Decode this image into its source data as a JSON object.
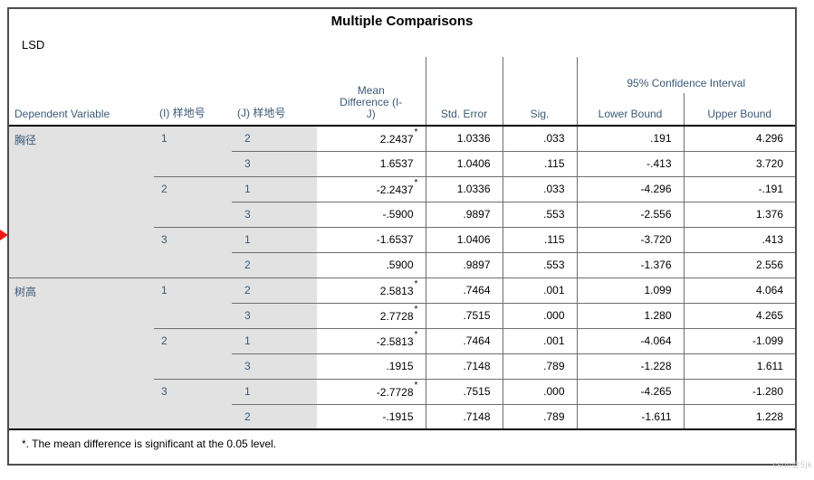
{
  "table": {
    "title": "Multiple Comparisons",
    "subtitle": "LSD",
    "headers": {
      "dependent_variable": "Dependent Variable",
      "i_group": "(I) 样地号",
      "j_group": "(J) 样地号",
      "mean_difference": "Mean\nDifference (I-\nJ)",
      "std_error": "Std. Error",
      "sig": "Sig.",
      "ci_span": "95% Confidence Interval",
      "lower_bound": "Lower Bound",
      "upper_bound": "Upper Bound"
    },
    "sections": [
      {
        "dependent_variable": "胸径",
        "groups": [
          {
            "i": "1",
            "rows": [
              {
                "j": "2",
                "mean_diff": "2.2437",
                "sig_flag": true,
                "std_error": "1.0336",
                "sig": ".033",
                "lower": ".191",
                "upper": "4.296"
              },
              {
                "j": "3",
                "mean_diff": "1.6537",
                "sig_flag": false,
                "std_error": "1.0406",
                "sig": ".115",
                "lower": "-.413",
                "upper": "3.720"
              }
            ]
          },
          {
            "i": "2",
            "rows": [
              {
                "j": "1",
                "mean_diff": "-2.2437",
                "sig_flag": true,
                "std_error": "1.0336",
                "sig": ".033",
                "lower": "-4.296",
                "upper": "-.191"
              },
              {
                "j": "3",
                "mean_diff": "-.5900",
                "sig_flag": false,
                "std_error": ".9897",
                "sig": ".553",
                "lower": "-2.556",
                "upper": "1.376"
              }
            ]
          },
          {
            "i": "3",
            "rows": [
              {
                "j": "1",
                "mean_diff": "-1.6537",
                "sig_flag": false,
                "std_error": "1.0406",
                "sig": ".115",
                "lower": "-3.720",
                "upper": ".413"
              },
              {
                "j": "2",
                "mean_diff": ".5900",
                "sig_flag": false,
                "std_error": ".9897",
                "sig": ".553",
                "lower": "-1.376",
                "upper": "2.556"
              }
            ]
          }
        ]
      },
      {
        "dependent_variable": "树高",
        "groups": [
          {
            "i": "1",
            "rows": [
              {
                "j": "2",
                "mean_diff": "2.5813",
                "sig_flag": true,
                "std_error": ".7464",
                "sig": ".001",
                "lower": "1.099",
                "upper": "4.064"
              },
              {
                "j": "3",
                "mean_diff": "2.7728",
                "sig_flag": true,
                "std_error": ".7515",
                "sig": ".000",
                "lower": "1.280",
                "upper": "4.265"
              }
            ]
          },
          {
            "i": "2",
            "rows": [
              {
                "j": "1",
                "mean_diff": "-2.5813",
                "sig_flag": true,
                "std_error": ".7464",
                "sig": ".001",
                "lower": "-4.064",
                "upper": "-1.099"
              },
              {
                "j": "3",
                "mean_diff": ".1915",
                "sig_flag": false,
                "std_error": ".7148",
                "sig": ".789",
                "lower": "-1.228",
                "upper": "1.611"
              }
            ]
          },
          {
            "i": "3",
            "rows": [
              {
                "j": "1",
                "mean_diff": "-2.7728",
                "sig_flag": true,
                "std_error": ".7515",
                "sig": ".000",
                "lower": "-4.265",
                "upper": "-1.280"
              },
              {
                "j": "2",
                "mean_diff": "-.1915",
                "sig_flag": false,
                "std_error": ".7148",
                "sig": ".789",
                "lower": "-1.611",
                "upper": "1.228"
              }
            ]
          }
        ]
      }
    ],
    "footnote": "*. The mean difference is significant at the 0.05 level.",
    "significance_marker": "*"
  },
  "colors": {
    "header_text": "#3b5a78",
    "row_label_bg": "#e2e2e2",
    "frame_border": "#4d4d4d",
    "annotation_arrow": "#ee1c14",
    "watermark_text": "#c9c9c9"
  },
  "watermark": "csdn@5jk"
}
